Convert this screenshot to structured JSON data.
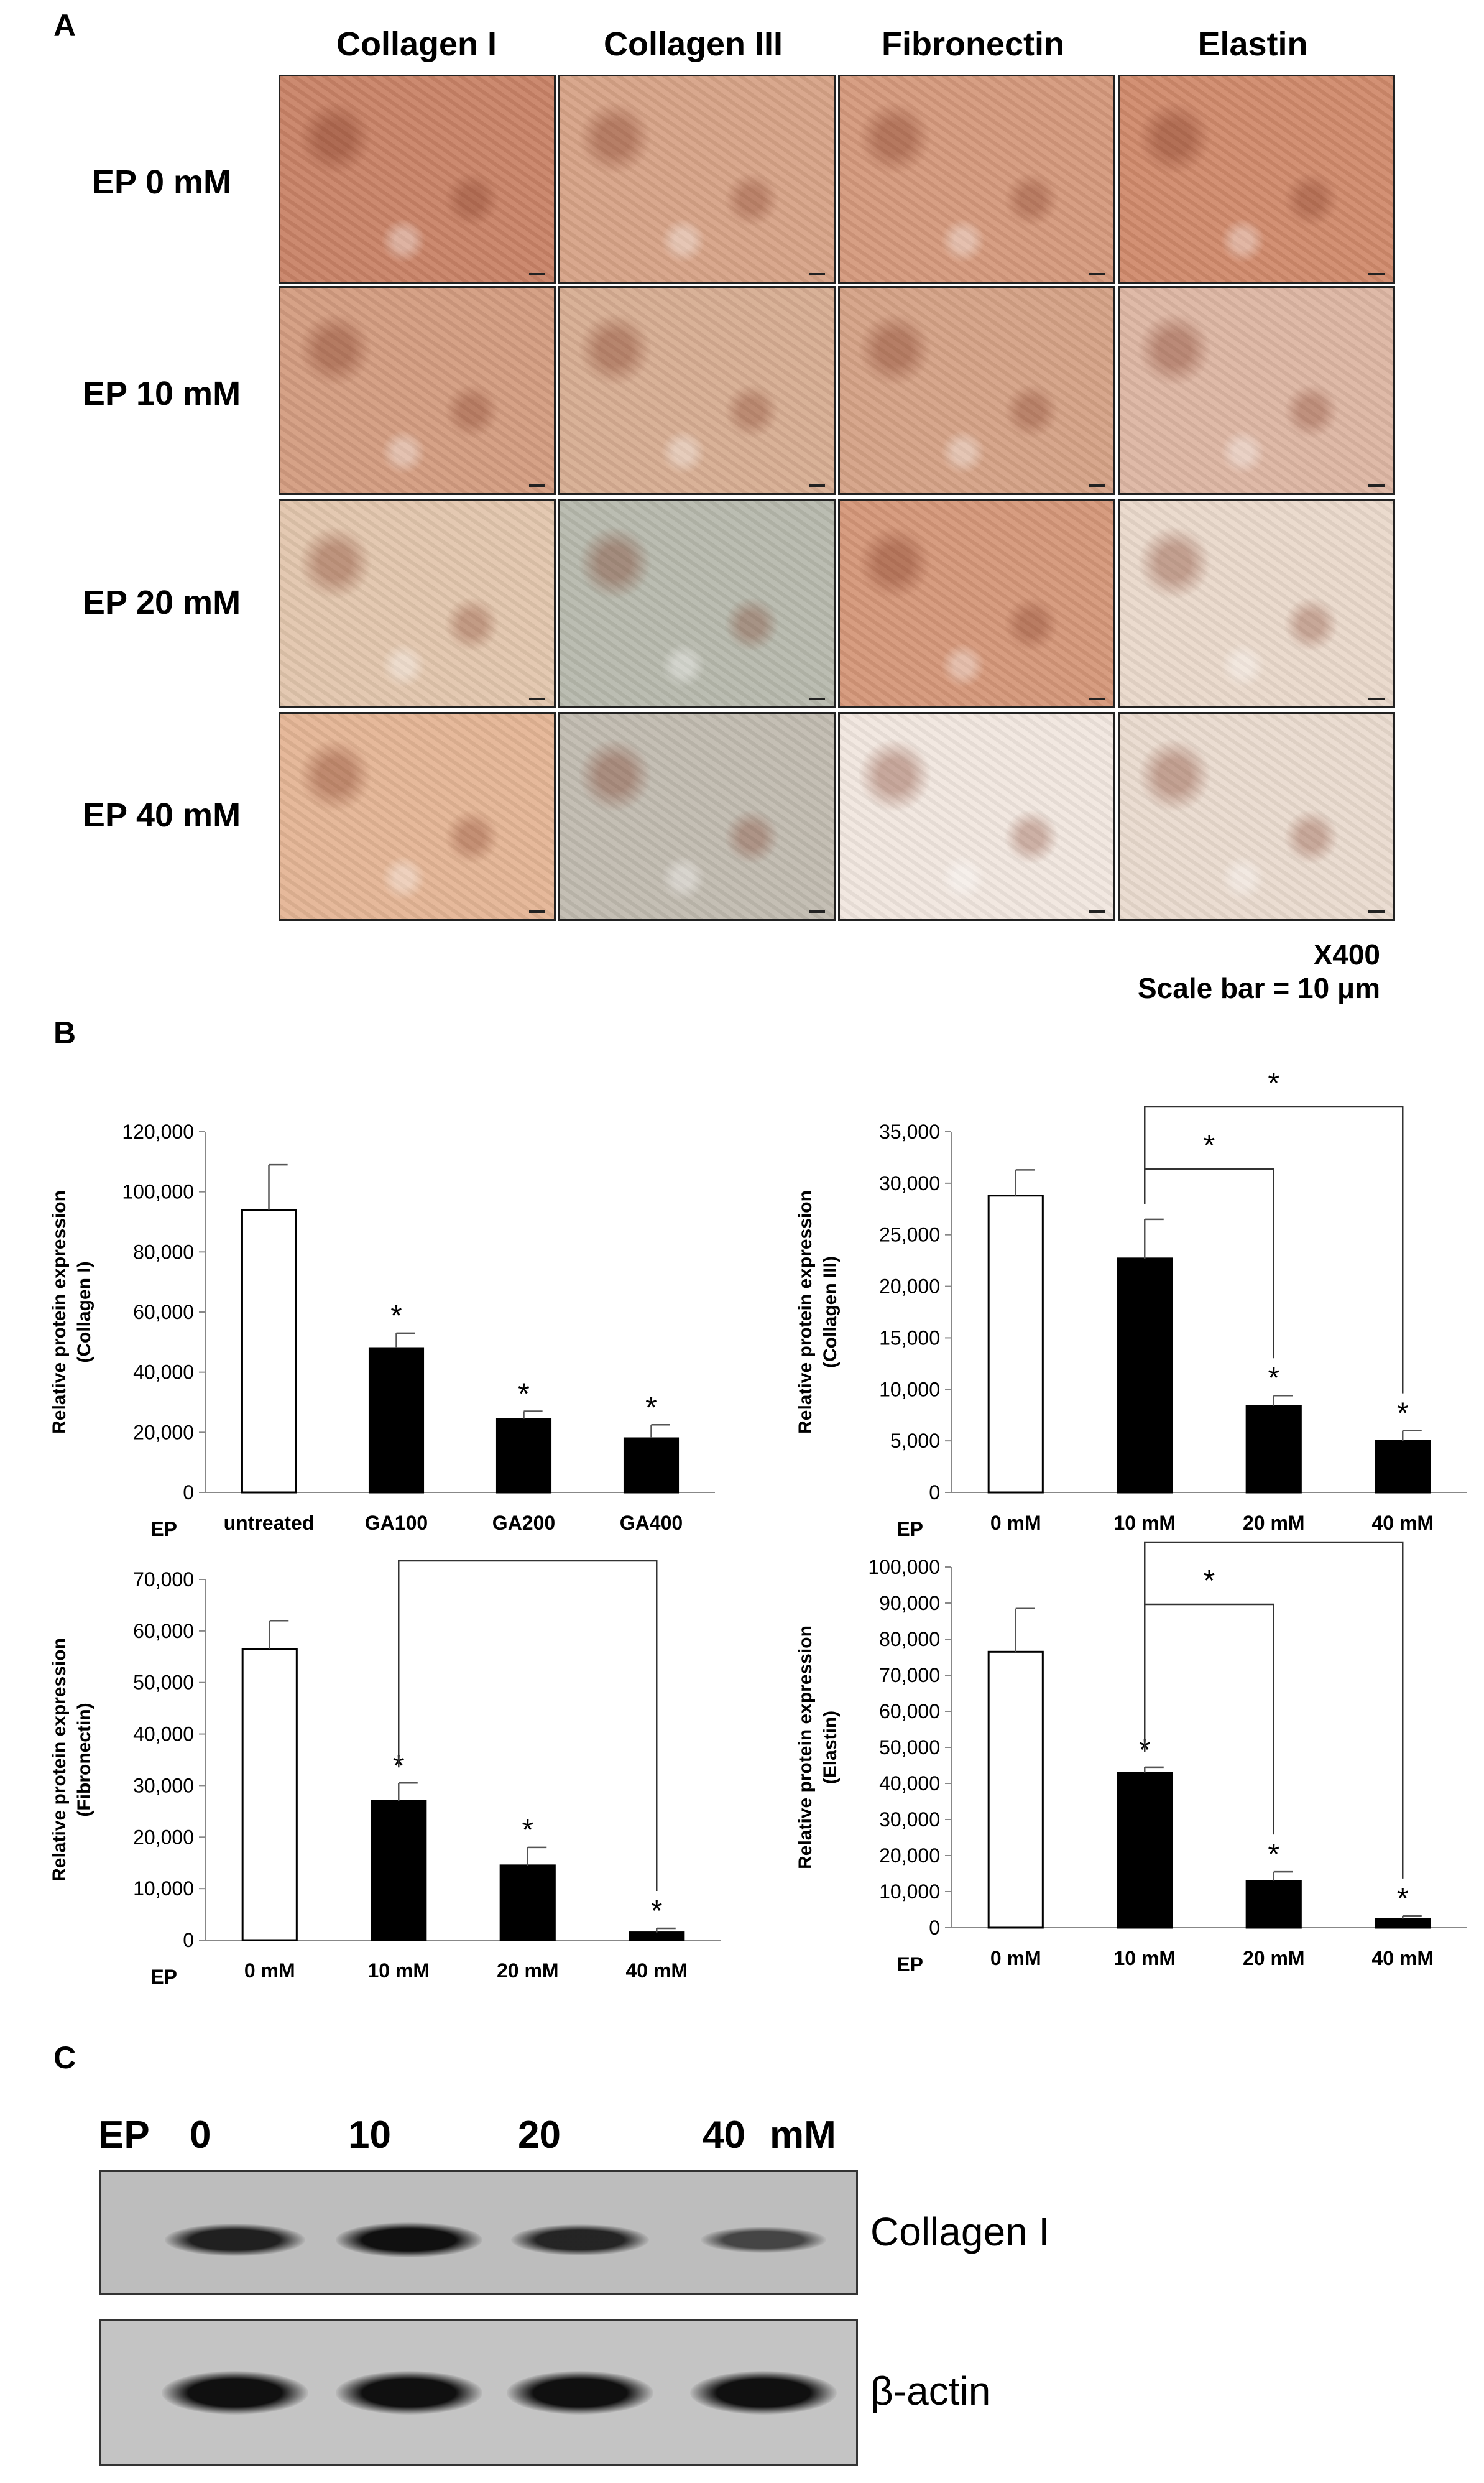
{
  "panel_a": {
    "letter": "A",
    "columns": [
      "Collagen I",
      "Collagen III",
      "Fibronectin",
      "Elastin"
    ],
    "rows": [
      "EP 0 mM",
      "EP 10 mM",
      "EP 20 mM",
      "EP 40 mM"
    ],
    "tile_colors": [
      [
        "#c98367",
        "#d7a387",
        "#d5997c",
        "#d08a6c"
      ],
      [
        "#d39c80",
        "#d7ad92",
        "#d5a286",
        "#ddb6a3"
      ],
      [
        "#e2c6ad",
        "#b7b9ad",
        "#d59779",
        "#ead9cb"
      ],
      [
        "#e4b595",
        "#c1bbb0",
        "#f1e7df",
        "#eadbcf"
      ]
    ],
    "magnification": "X400",
    "scale_bar": "Scale bar = 10 μm"
  },
  "panel_b": {
    "letter": "B"
  },
  "chart_data": [
    {
      "type": "bar",
      "ylabel": "Relative protein expression",
      "ylabel2": "(Collagen I)",
      "x_prefix": "EP",
      "categories": [
        "untreated",
        "GA100",
        "GA200",
        "GA400"
      ],
      "values": [
        94000,
        48000,
        24500,
        18000
      ],
      "errors": [
        15000,
        5000,
        2500,
        4500
      ],
      "bar_colors": [
        "#ffffff",
        "#000000",
        "#000000",
        "#000000"
      ],
      "stars": [
        false,
        true,
        true,
        true
      ],
      "ylim": [
        0,
        120000
      ],
      "yticks": [
        "0",
        "20,000",
        "40,000",
        "60,000",
        "80,000",
        "100,000",
        "120,000"
      ],
      "brackets": []
    },
    {
      "type": "bar",
      "ylabel": "Relative protein expression",
      "ylabel2": "(Collagen III)",
      "x_prefix": "EP",
      "categories": [
        "0 mM",
        "10 mM",
        "20 mM",
        "40 mM"
      ],
      "values": [
        28800,
        22700,
        8400,
        5000
      ],
      "errors": [
        2500,
        3800,
        1000,
        1000
      ],
      "bar_colors": [
        "#ffffff",
        "#000000",
        "#000000",
        "#000000"
      ],
      "stars": [
        false,
        false,
        true,
        true
      ],
      "ylim": [
        0,
        35000
      ],
      "yticks": [
        "0",
        "5,000",
        "10,000",
        "15,000",
        "20,000",
        "25,000",
        "30,000",
        "35,000"
      ],
      "brackets": [
        {
          "from": 1,
          "to": 2,
          "label": "*"
        },
        {
          "from": 1,
          "to": 3,
          "label": "*"
        }
      ]
    },
    {
      "type": "bar",
      "ylabel": "Relative protein expression",
      "ylabel2": "(Fibronectin)",
      "x_prefix": "EP",
      "categories": [
        "0 mM",
        "10 mM",
        "20 mM",
        "40 mM"
      ],
      "values": [
        56500,
        27000,
        14500,
        1500
      ],
      "errors": [
        5500,
        3500,
        3500,
        800
      ],
      "bar_colors": [
        "#ffffff",
        "#000000",
        "#000000",
        "#000000"
      ],
      "stars": [
        false,
        true,
        true,
        true
      ],
      "ylim": [
        0,
        70000
      ],
      "yticks": [
        "0",
        "10,000",
        "20,000",
        "30,000",
        "40,000",
        "50,000",
        "60,000",
        "70,000"
      ],
      "brackets": [
        {
          "from": 1,
          "to": 3,
          "label": "*"
        }
      ]
    },
    {
      "type": "bar",
      "ylabel": "Relative protein expression",
      "ylabel2": "(Elastin)",
      "x_prefix": "EP",
      "categories": [
        "0 mM",
        "10 mM",
        "20 mM",
        "40 mM"
      ],
      "values": [
        76500,
        43000,
        13000,
        2500
      ],
      "errors": [
        12000,
        1500,
        2500,
        800
      ],
      "bar_colors": [
        "#ffffff",
        "#000000",
        "#000000",
        "#000000"
      ],
      "stars": [
        false,
        true,
        true,
        true
      ],
      "ylim": [
        0,
        100000
      ],
      "yticks": [
        "0",
        "10,000",
        "20,000",
        "30,000",
        "40,000",
        "50,000",
        "60,000",
        "70,000",
        "80,000",
        "90,000",
        "100,000"
      ],
      "brackets": [
        {
          "from": 1,
          "to": 2,
          "label": "*"
        },
        {
          "from": 1,
          "to": 3,
          "label": "*"
        }
      ]
    }
  ],
  "panel_c": {
    "letter": "C",
    "ep_label": "EP",
    "lanes": [
      "0",
      "10",
      "20",
      "40"
    ],
    "unit": "mM",
    "blots": [
      {
        "label": "Collagen I",
        "intensity": [
          0.8,
          0.95,
          0.75,
          0.45
        ]
      },
      {
        "label": "β-actin",
        "intensity": [
          0.95,
          0.95,
          0.95,
          0.95
        ]
      }
    ]
  }
}
